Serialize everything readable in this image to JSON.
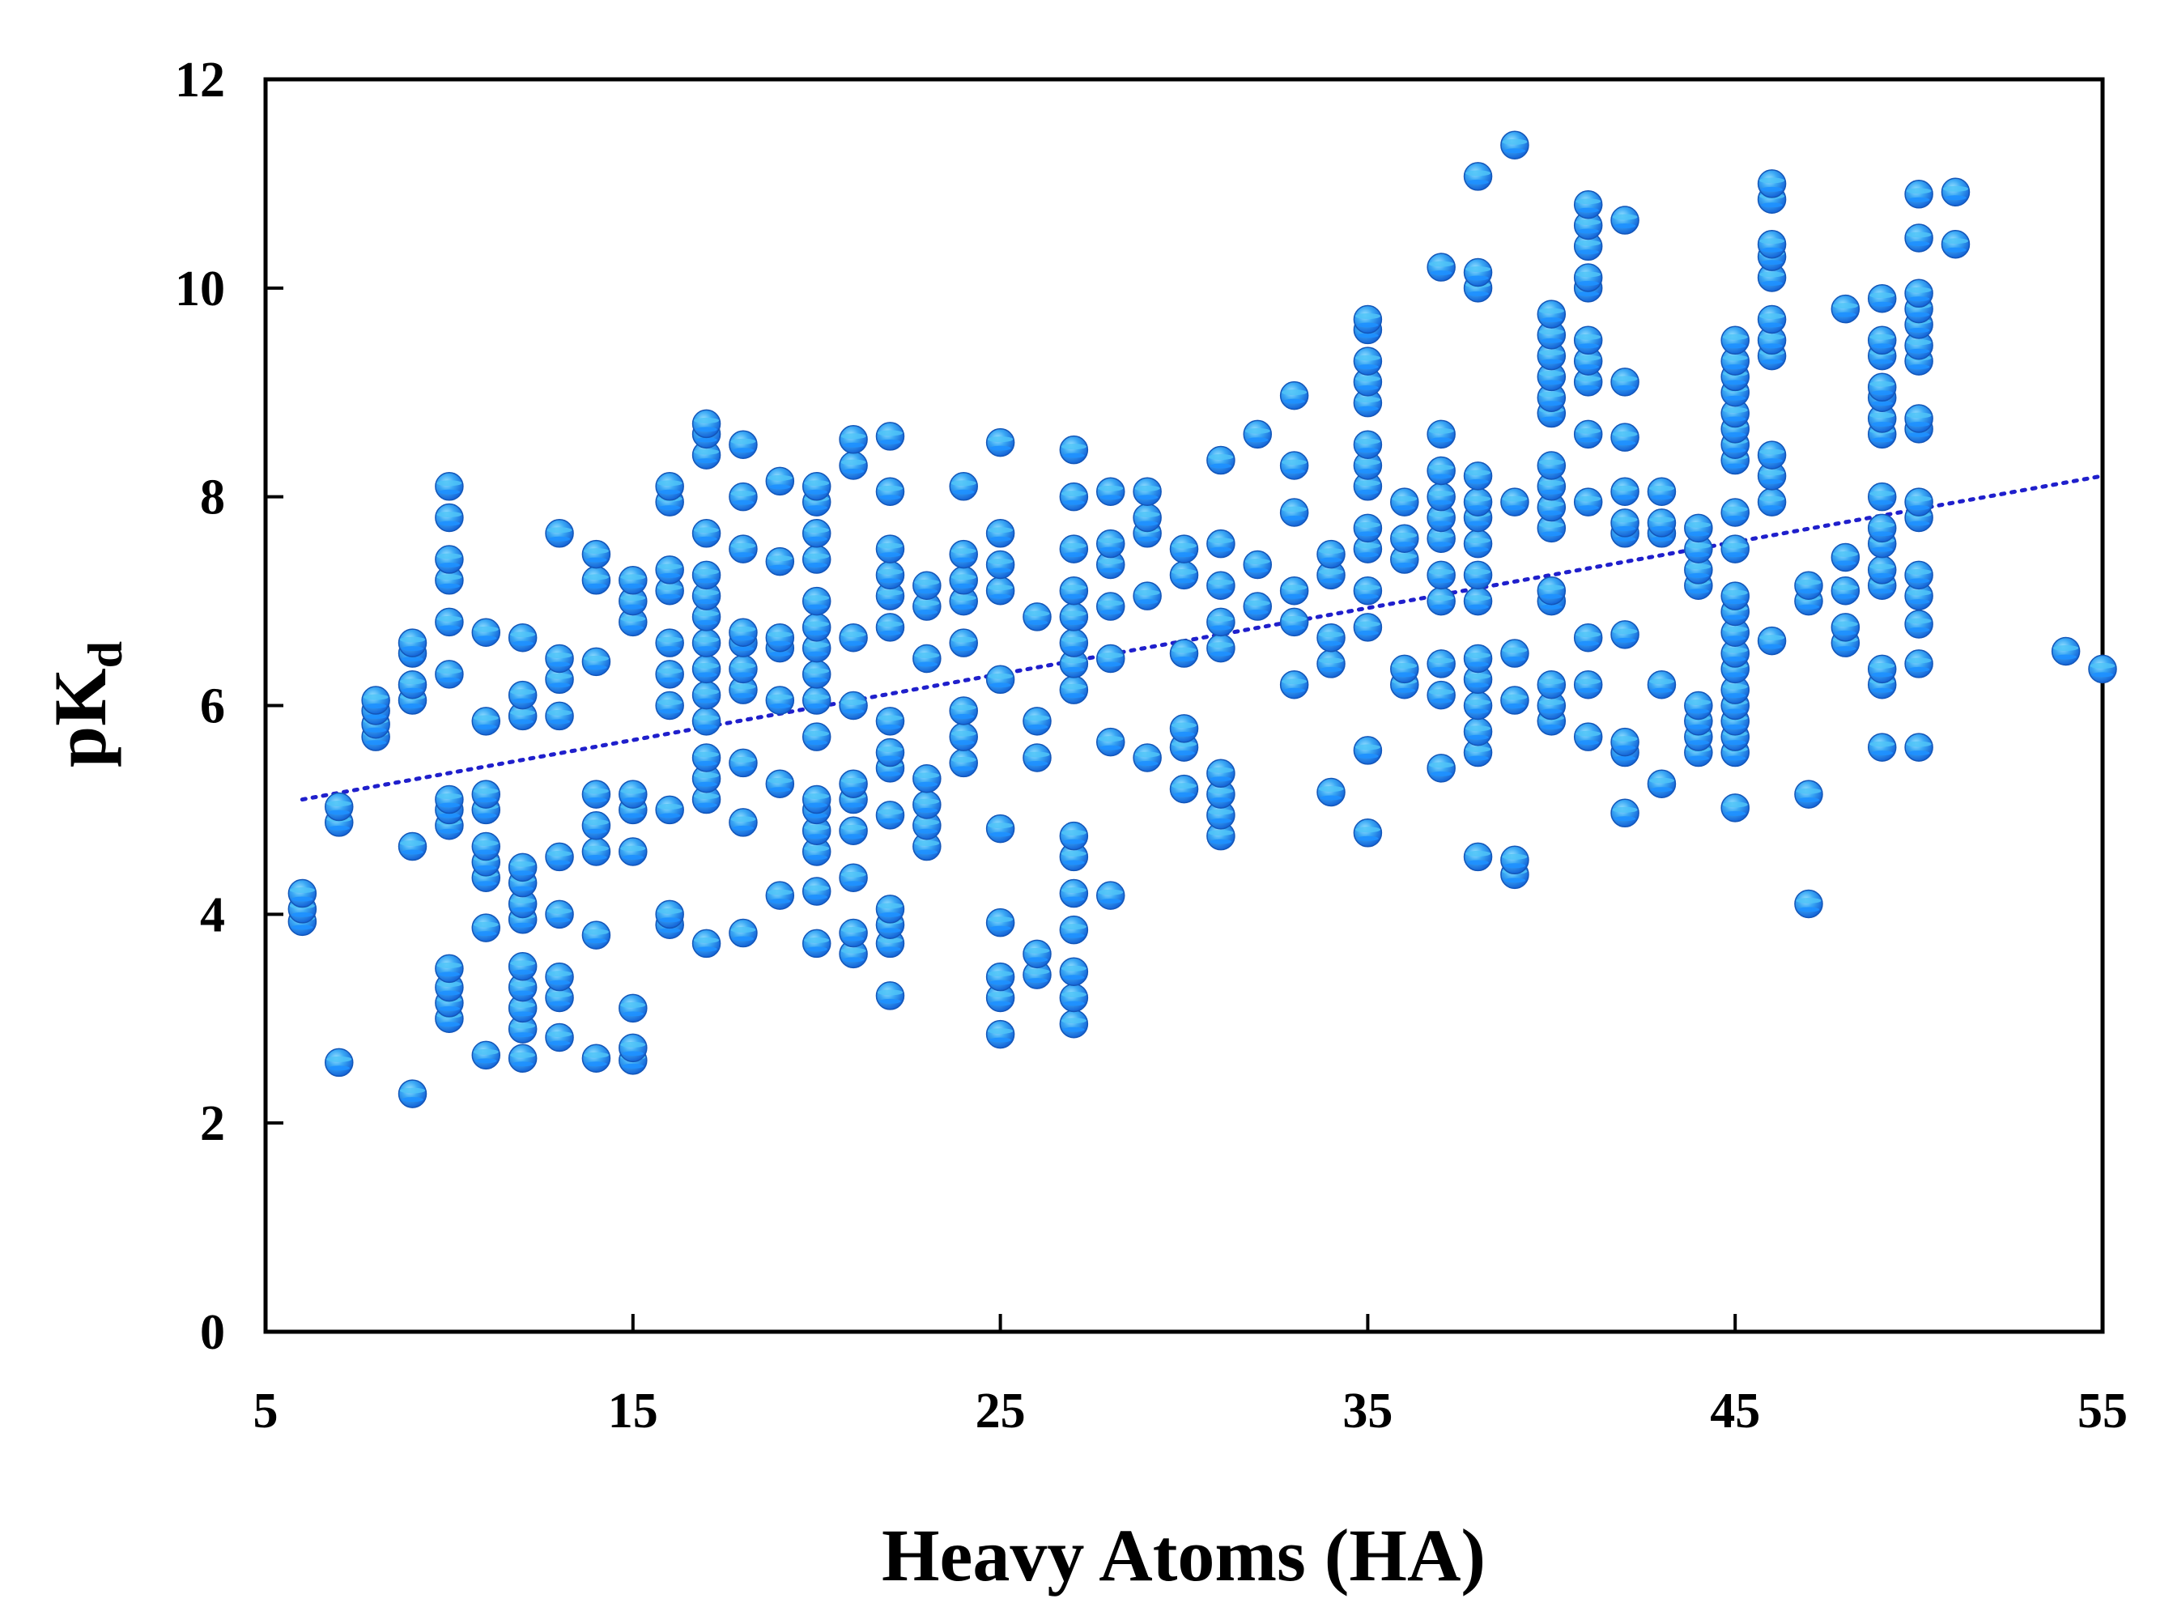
{
  "chart_data": {
    "type": "scatter",
    "xlabel": "Heavy Atoms (HA)",
    "ylabel": {
      "main": "pK",
      "sub": "d"
    },
    "xlim": [
      5,
      55
    ],
    "ylim": [
      0,
      12
    ],
    "xticks": [
      "5",
      "15",
      "25",
      "35",
      "45",
      "55"
    ],
    "yticks": [
      "0",
      "2",
      "4",
      "6",
      "8",
      "10",
      "12"
    ],
    "grid": false,
    "legend": "none",
    "marker_color": "#1E90FF",
    "marker_highlight": "#4FC3F7",
    "trendline": {
      "style": "dotted",
      "color": "#1F1FCC",
      "x": [
        6,
        55
      ],
      "y": [
        5.1,
        8.2
      ]
    },
    "points": [
      [
        6,
        3.93
      ],
      [
        6,
        4.05
      ],
      [
        6,
        4.2
      ],
      [
        7,
        2.58
      ],
      [
        7,
        4.88
      ],
      [
        7,
        5.03
      ],
      [
        8,
        5.7
      ],
      [
        8,
        5.82
      ],
      [
        8,
        5.95
      ],
      [
        8,
        6.05
      ],
      [
        9,
        2.28
      ],
      [
        9,
        4.65
      ],
      [
        9,
        6.05
      ],
      [
        9,
        6.2
      ],
      [
        9,
        6.5
      ],
      [
        9,
        6.6
      ],
      [
        10,
        3.0
      ],
      [
        10,
        3.15
      ],
      [
        10,
        3.3
      ],
      [
        10,
        3.48
      ],
      [
        10,
        4.85
      ],
      [
        10,
        5.0
      ],
      [
        10,
        5.1
      ],
      [
        10,
        6.3
      ],
      [
        10,
        6.8
      ],
      [
        10,
        7.2
      ],
      [
        10,
        7.4
      ],
      [
        10,
        7.8
      ],
      [
        10,
        8.1
      ],
      [
        11,
        2.65
      ],
      [
        11,
        3.87
      ],
      [
        11,
        4.35
      ],
      [
        11,
        4.5
      ],
      [
        11,
        4.65
      ],
      [
        11,
        5.0
      ],
      [
        11,
        5.15
      ],
      [
        11,
        5.85
      ],
      [
        11,
        6.7
      ],
      [
        12,
        2.62
      ],
      [
        12,
        2.9
      ],
      [
        12,
        3.1
      ],
      [
        12,
        3.3
      ],
      [
        12,
        3.5
      ],
      [
        12,
        3.95
      ],
      [
        12,
        4.1
      ],
      [
        12,
        4.3
      ],
      [
        12,
        4.45
      ],
      [
        12,
        5.9
      ],
      [
        12,
        6.1
      ],
      [
        12,
        6.65
      ],
      [
        13,
        2.82
      ],
      [
        13,
        3.2
      ],
      [
        13,
        3.4
      ],
      [
        13,
        4.0
      ],
      [
        13,
        4.55
      ],
      [
        13,
        5.9
      ],
      [
        13,
        6.25
      ],
      [
        13,
        6.45
      ],
      [
        13,
        7.65
      ],
      [
        14,
        2.62
      ],
      [
        14,
        3.8
      ],
      [
        14,
        4.6
      ],
      [
        14,
        4.85
      ],
      [
        14,
        5.15
      ],
      [
        14,
        6.42
      ],
      [
        14,
        7.2
      ],
      [
        14,
        7.45
      ],
      [
        15,
        2.6
      ],
      [
        15,
        2.72
      ],
      [
        15,
        3.1
      ],
      [
        15,
        4.6
      ],
      [
        15,
        5.0
      ],
      [
        15,
        5.15
      ],
      [
        15,
        6.8
      ],
      [
        15,
        7.0
      ],
      [
        15,
        7.2
      ],
      [
        16,
        3.9
      ],
      [
        16,
        4.0
      ],
      [
        16,
        5.0
      ],
      [
        16,
        6.0
      ],
      [
        16,
        6.3
      ],
      [
        16,
        6.6
      ],
      [
        16,
        7.1
      ],
      [
        16,
        7.3
      ],
      [
        16,
        7.95
      ],
      [
        16,
        8.1
      ],
      [
        17,
        3.72
      ],
      [
        17,
        5.1
      ],
      [
        17,
        5.3
      ],
      [
        17,
        5.5
      ],
      [
        17,
        5.85
      ],
      [
        17,
        6.1
      ],
      [
        17,
        6.35
      ],
      [
        17,
        6.6
      ],
      [
        17,
        6.85
      ],
      [
        17,
        7.05
      ],
      [
        17,
        7.25
      ],
      [
        17,
        7.65
      ],
      [
        17,
        8.4
      ],
      [
        17,
        8.6
      ],
      [
        17,
        8.7
      ],
      [
        18,
        3.82
      ],
      [
        18,
        4.88
      ],
      [
        18,
        5.45
      ],
      [
        18,
        6.15
      ],
      [
        18,
        6.35
      ],
      [
        18,
        6.6
      ],
      [
        18,
        6.7
      ],
      [
        18,
        7.5
      ],
      [
        18,
        8.0
      ],
      [
        18,
        8.5
      ],
      [
        19,
        4.18
      ],
      [
        19,
        5.25
      ],
      [
        19,
        6.05
      ],
      [
        19,
        6.55
      ],
      [
        19,
        6.65
      ],
      [
        19,
        7.38
      ],
      [
        19,
        8.15
      ],
      [
        20,
        3.72
      ],
      [
        20,
        4.22
      ],
      [
        20,
        4.6
      ],
      [
        20,
        4.8
      ],
      [
        20,
        5.0
      ],
      [
        20,
        5.1
      ],
      [
        20,
        5.7
      ],
      [
        20,
        6.05
      ],
      [
        20,
        6.3
      ],
      [
        20,
        6.55
      ],
      [
        20,
        6.75
      ],
      [
        20,
        7.0
      ],
      [
        20,
        7.4
      ],
      [
        20,
        7.65
      ],
      [
        20,
        7.95
      ],
      [
        20,
        8.1
      ],
      [
        21,
        3.62
      ],
      [
        21,
        3.82
      ],
      [
        21,
        4.35
      ],
      [
        21,
        4.8
      ],
      [
        21,
        5.1
      ],
      [
        21,
        5.25
      ],
      [
        21,
        6.0
      ],
      [
        21,
        6.65
      ],
      [
        21,
        8.3
      ],
      [
        21,
        8.55
      ],
      [
        22,
        3.22
      ],
      [
        22,
        3.72
      ],
      [
        22,
        3.9
      ],
      [
        22,
        4.05
      ],
      [
        22,
        4.95
      ],
      [
        22,
        5.4
      ],
      [
        22,
        5.55
      ],
      [
        22,
        5.85
      ],
      [
        22,
        6.75
      ],
      [
        22,
        7.05
      ],
      [
        22,
        7.25
      ],
      [
        22,
        7.5
      ],
      [
        22,
        8.05
      ],
      [
        22,
        8.58
      ],
      [
        23,
        4.65
      ],
      [
        23,
        4.85
      ],
      [
        23,
        5.05
      ],
      [
        23,
        5.3
      ],
      [
        23,
        6.45
      ],
      [
        23,
        6.95
      ],
      [
        23,
        7.15
      ],
      [
        24,
        5.45
      ],
      [
        24,
        5.7
      ],
      [
        24,
        5.95
      ],
      [
        24,
        6.6
      ],
      [
        24,
        7.0
      ],
      [
        24,
        7.2
      ],
      [
        24,
        7.45
      ],
      [
        24,
        8.1
      ],
      [
        25,
        2.85
      ],
      [
        25,
        3.2
      ],
      [
        25,
        3.4
      ],
      [
        25,
        3.92
      ],
      [
        25,
        4.82
      ],
      [
        25,
        6.25
      ],
      [
        25,
        7.1
      ],
      [
        25,
        7.35
      ],
      [
        25,
        7.65
      ],
      [
        25,
        8.52
      ],
      [
        26,
        3.42
      ],
      [
        26,
        3.62
      ],
      [
        26,
        5.5
      ],
      [
        26,
        5.85
      ],
      [
        26,
        6.85
      ],
      [
        27,
        2.95
      ],
      [
        27,
        3.2
      ],
      [
        27,
        3.45
      ],
      [
        27,
        3.85
      ],
      [
        27,
        4.2
      ],
      [
        27,
        4.55
      ],
      [
        27,
        4.75
      ],
      [
        27,
        6.15
      ],
      [
        27,
        6.4
      ],
      [
        27,
        6.6
      ],
      [
        27,
        6.85
      ],
      [
        27,
        7.1
      ],
      [
        27,
        7.5
      ],
      [
        27,
        8.0
      ],
      [
        27,
        8.45
      ],
      [
        28,
        4.18
      ],
      [
        28,
        5.65
      ],
      [
        28,
        6.45
      ],
      [
        28,
        6.95
      ],
      [
        28,
        7.35
      ],
      [
        28,
        7.55
      ],
      [
        28,
        8.05
      ],
      [
        29,
        5.5
      ],
      [
        29,
        7.05
      ],
      [
        29,
        7.65
      ],
      [
        29,
        7.8
      ],
      [
        29,
        8.05
      ],
      [
        30,
        5.2
      ],
      [
        30,
        5.6
      ],
      [
        30,
        5.78
      ],
      [
        30,
        6.5
      ],
      [
        30,
        7.25
      ],
      [
        30,
        7.5
      ],
      [
        31,
        4.75
      ],
      [
        31,
        4.95
      ],
      [
        31,
        5.15
      ],
      [
        31,
        5.35
      ],
      [
        31,
        6.55
      ],
      [
        31,
        6.8
      ],
      [
        31,
        7.15
      ],
      [
        31,
        7.55
      ],
      [
        31,
        8.35
      ],
      [
        32,
        6.95
      ],
      [
        32,
        7.35
      ],
      [
        32,
        8.6
      ],
      [
        33,
        6.2
      ],
      [
        33,
        6.8
      ],
      [
        33,
        7.1
      ],
      [
        33,
        7.85
      ],
      [
        33,
        8.3
      ],
      [
        33,
        8.97
      ],
      [
        34,
        5.17
      ],
      [
        34,
        6.4
      ],
      [
        34,
        6.65
      ],
      [
        34,
        7.25
      ],
      [
        34,
        7.45
      ],
      [
        35,
        4.78
      ],
      [
        35,
        5.57
      ],
      [
        35,
        6.75
      ],
      [
        35,
        7.1
      ],
      [
        35,
        7.5
      ],
      [
        35,
        7.7
      ],
      [
        35,
        8.1
      ],
      [
        35,
        8.3
      ],
      [
        35,
        8.5
      ],
      [
        35,
        8.9
      ],
      [
        35,
        9.1
      ],
      [
        35,
        9.3
      ],
      [
        35,
        9.6
      ],
      [
        35,
        9.7
      ],
      [
        36,
        6.2
      ],
      [
        36,
        6.35
      ],
      [
        36,
        7.4
      ],
      [
        36,
        7.6
      ],
      [
        36,
        7.95
      ],
      [
        37,
        5.4
      ],
      [
        37,
        6.1
      ],
      [
        37,
        6.4
      ],
      [
        37,
        7.0
      ],
      [
        37,
        7.25
      ],
      [
        37,
        7.6
      ],
      [
        37,
        7.8
      ],
      [
        37,
        8.0
      ],
      [
        37,
        8.25
      ],
      [
        37,
        8.6
      ],
      [
        37,
        10.2
      ],
      [
        38,
        4.55
      ],
      [
        38,
        5.55
      ],
      [
        38,
        5.75
      ],
      [
        38,
        6.0
      ],
      [
        38,
        6.25
      ],
      [
        38,
        6.45
      ],
      [
        38,
        7.0
      ],
      [
        38,
        7.25
      ],
      [
        38,
        7.55
      ],
      [
        38,
        7.8
      ],
      [
        38,
        7.95
      ],
      [
        38,
        8.2
      ],
      [
        38,
        10.0
      ],
      [
        38,
        10.15
      ],
      [
        38,
        11.07
      ],
      [
        39,
        4.38
      ],
      [
        39,
        4.52
      ],
      [
        39,
        6.05
      ],
      [
        39,
        6.5
      ],
      [
        39,
        7.95
      ],
      [
        39,
        11.37
      ],
      [
        40,
        5.85
      ],
      [
        40,
        6.0
      ],
      [
        40,
        6.2
      ],
      [
        40,
        7.0
      ],
      [
        40,
        7.1
      ],
      [
        40,
        7.7
      ],
      [
        40,
        7.9
      ],
      [
        40,
        8.1
      ],
      [
        40,
        8.3
      ],
      [
        40,
        8.8
      ],
      [
        40,
        8.95
      ],
      [
        40,
        9.15
      ],
      [
        40,
        9.35
      ],
      [
        40,
        9.55
      ],
      [
        40,
        9.75
      ],
      [
        41,
        5.7
      ],
      [
        41,
        6.2
      ],
      [
        41,
        6.65
      ],
      [
        41,
        7.95
      ],
      [
        41,
        8.6
      ],
      [
        41,
        9.1
      ],
      [
        41,
        9.3
      ],
      [
        41,
        9.5
      ],
      [
        41,
        10.0
      ],
      [
        41,
        10.1
      ],
      [
        41,
        10.4
      ],
      [
        41,
        10.6
      ],
      [
        41,
        10.8
      ],
      [
        42,
        4.97
      ],
      [
        42,
        5.55
      ],
      [
        42,
        5.65
      ],
      [
        42,
        6.68
      ],
      [
        42,
        7.65
      ],
      [
        42,
        7.75
      ],
      [
        42,
        8.05
      ],
      [
        42,
        8.57
      ],
      [
        42,
        9.1
      ],
      [
        42,
        10.65
      ],
      [
        43,
        5.25
      ],
      [
        43,
        6.2
      ],
      [
        43,
        7.65
      ],
      [
        43,
        7.75
      ],
      [
        43,
        8.05
      ],
      [
        44,
        5.55
      ],
      [
        44,
        5.7
      ],
      [
        44,
        5.85
      ],
      [
        44,
        6.0
      ],
      [
        44,
        7.15
      ],
      [
        44,
        7.3
      ],
      [
        44,
        7.5
      ],
      [
        44,
        7.7
      ],
      [
        45,
        5.02
      ],
      [
        45,
        5.55
      ],
      [
        45,
        5.7
      ],
      [
        45,
        5.85
      ],
      [
        45,
        6.0
      ],
      [
        45,
        6.15
      ],
      [
        45,
        6.35
      ],
      [
        45,
        6.5
      ],
      [
        45,
        6.7
      ],
      [
        45,
        6.9
      ],
      [
        45,
        7.05
      ],
      [
        45,
        7.5
      ],
      [
        45,
        7.85
      ],
      [
        45,
        8.35
      ],
      [
        45,
        8.5
      ],
      [
        45,
        8.65
      ],
      [
        45,
        8.8
      ],
      [
        45,
        9.0
      ],
      [
        45,
        9.15
      ],
      [
        45,
        9.3
      ],
      [
        45,
        9.5
      ],
      [
        46,
        6.62
      ],
      [
        46,
        7.95
      ],
      [
        46,
        8.2
      ],
      [
        46,
        8.4
      ],
      [
        46,
        9.35
      ],
      [
        46,
        9.5
      ],
      [
        46,
        9.7
      ],
      [
        46,
        10.1
      ],
      [
        46,
        10.3
      ],
      [
        46,
        10.42
      ],
      [
        46,
        10.85
      ],
      [
        46,
        11.0
      ],
      [
        47,
        4.1
      ],
      [
        47,
        5.15
      ],
      [
        47,
        7.0
      ],
      [
        47,
        7.15
      ],
      [
        48,
        6.6
      ],
      [
        48,
        6.75
      ],
      [
        48,
        7.1
      ],
      [
        48,
        7.42
      ],
      [
        48,
        9.8
      ],
      [
        49,
        5.6
      ],
      [
        49,
        6.2
      ],
      [
        49,
        6.35
      ],
      [
        49,
        7.15
      ],
      [
        49,
        7.3
      ],
      [
        49,
        7.55
      ],
      [
        49,
        7.7
      ],
      [
        49,
        8.0
      ],
      [
        49,
        8.6
      ],
      [
        49,
        8.75
      ],
      [
        49,
        8.95
      ],
      [
        49,
        9.05
      ],
      [
        49,
        9.35
      ],
      [
        49,
        9.5
      ],
      [
        49,
        9.9
      ],
      [
        50,
        5.6
      ],
      [
        50,
        6.4
      ],
      [
        50,
        6.78
      ],
      [
        50,
        7.05
      ],
      [
        50,
        7.25
      ],
      [
        50,
        7.8
      ],
      [
        50,
        7.95
      ],
      [
        50,
        8.65
      ],
      [
        50,
        8.75
      ],
      [
        50,
        9.3
      ],
      [
        50,
        9.45
      ],
      [
        50,
        9.65
      ],
      [
        50,
        9.8
      ],
      [
        50,
        9.95
      ],
      [
        50,
        10.48
      ],
      [
        50,
        10.9
      ],
      [
        51,
        10.42
      ],
      [
        51,
        10.92
      ],
      [
        54,
        6.52
      ],
      [
        55,
        6.35
      ]
    ]
  }
}
